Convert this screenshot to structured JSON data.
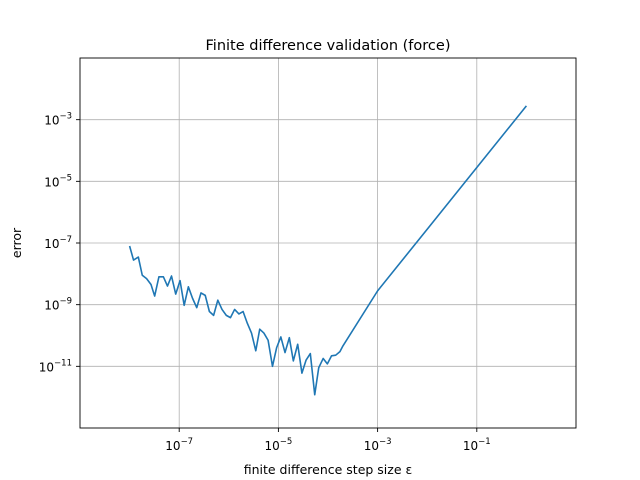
{
  "chart_data": {
    "type": "line",
    "title": "Finite difference validation (force)",
    "xlabel": "finite difference step size ε",
    "ylabel": "error",
    "xscale": "log",
    "yscale": "log",
    "xlim": [
      1e-09,
      10
    ],
    "ylim": [
      1e-13,
      0.1
    ],
    "grid": true,
    "x_ticks": [
      {
        "base": "10",
        "exp": "−7",
        "value": 1e-07
      },
      {
        "base": "10",
        "exp": "−5",
        "value": 1e-05
      },
      {
        "base": "10",
        "exp": "−3",
        "value": 0.001
      },
      {
        "base": "10",
        "exp": "−1",
        "value": 0.1
      }
    ],
    "y_ticks": [
      {
        "base": "10",
        "exp": "−3",
        "value": 0.001
      },
      {
        "base": "10",
        "exp": "−5",
        "value": 1e-05
      },
      {
        "base": "10",
        "exp": "−7",
        "value": 1e-07
      },
      {
        "base": "10",
        "exp": "−9",
        "value": 1e-09
      },
      {
        "base": "10",
        "exp": "−11",
        "value": 1e-11
      }
    ],
    "line_color": "#1f77b4",
    "series": [
      {
        "x": [
          1e-08,
          1.2e-08,
          1.5e-08,
          1.8e-08,
          2.2e-08,
          2.7e-08,
          3.2e-08,
          3.9e-08,
          4.8e-08,
          5.8e-08,
          7e-08,
          8.5e-08,
          1.04e-07,
          1.26e-07,
          1.53e-07,
          1.86e-07,
          2.26e-07,
          2.75e-07,
          3.35e-07,
          4.06e-07,
          4.94e-07,
          6e-07,
          7.3e-07,
          8.9e-07,
          1.08e-06,
          1.31e-06,
          1.6e-06,
          1.94e-06,
          2.36e-06,
          2.87e-06,
          3.5e-06,
          4.2e-06,
          5.1e-06,
          6.2e-06,
          7.6e-06,
          9.2e-06,
          1.12e-05,
          1.36e-05,
          1.66e-05,
          2e-05,
          2.45e-05,
          2.98e-05,
          3.62e-05,
          4.4e-05,
          5.4e-05,
          6.5e-05,
          8e-05,
          9.7e-05,
          0.000118,
          0.000143,
          0.000174,
          0.0002,
          0.001,
          0.01,
          0.1,
          1
        ],
        "y": [
          8e-08,
          2.8e-08,
          3.5e-08,
          9e-09,
          7e-09,
          4.5e-09,
          1.9e-09,
          8e-09,
          8e-09,
          4e-09,
          8.5e-09,
          2.2e-09,
          6e-09,
          9.5e-10,
          3.8e-09,
          1.6e-09,
          8e-10,
          2.4e-09,
          2e-09,
          6e-10,
          4.5e-10,
          1.4e-09,
          7e-10,
          4.5e-10,
          3.8e-10,
          7e-10,
          5e-10,
          6e-10,
          2.5e-10,
          1.2e-10,
          3.2e-11,
          1.6e-10,
          1.2e-10,
          7e-11,
          1e-11,
          4e-11,
          9e-11,
          2.8e-11,
          8.5e-11,
          1.5e-11,
          5.2e-11,
          6e-12,
          1.6e-11,
          2.6e-11,
          1.2e-12,
          9e-12,
          1.8e-11,
          1.2e-11,
          2.2e-11,
          2.3e-11,
          3e-11,
          4.6e-11,
          2.8e-09,
          2.8e-07,
          2.8e-05,
          0.0028
        ]
      }
    ]
  }
}
